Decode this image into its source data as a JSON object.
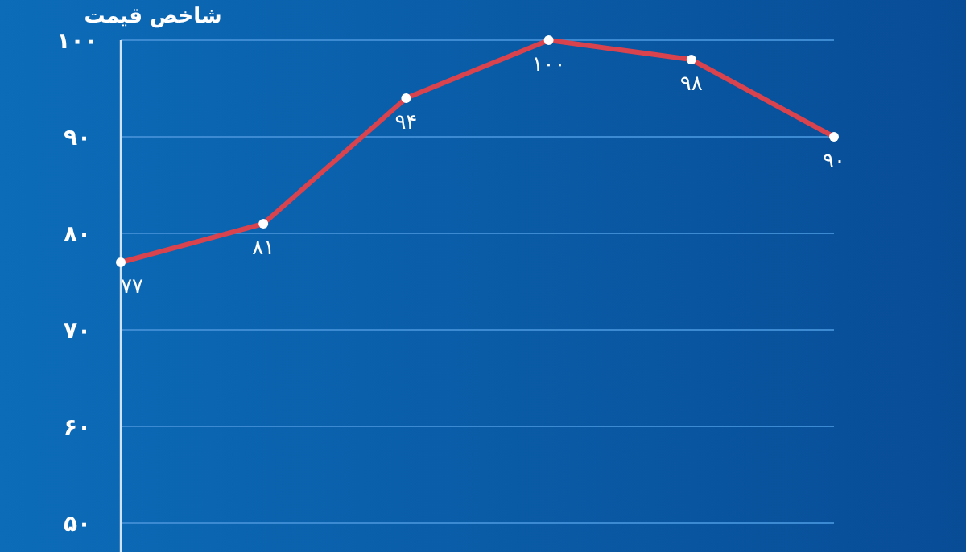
{
  "chart_data": {
    "type": "line",
    "title": "شاخص قیمت",
    "categories": [
      null,
      null,
      null,
      null,
      null,
      null
    ],
    "series": [
      {
        "color": "#d9434e",
        "values": [
          77,
          81,
          94,
          100,
          98,
          90
        ],
        "value_labels": [
          "۷۷",
          "۸۱",
          "۹۴",
          "۱۰۰",
          "۹۸",
          "۹۰"
        ]
      }
    ],
    "ylim": [
      47,
      100
    ],
    "yticks": [
      {
        "value": 50,
        "label": "۵۰"
      },
      {
        "value": 60,
        "label": "۶۰"
      },
      {
        "value": 70,
        "label": "۷۰"
      },
      {
        "value": 80,
        "label": "۸۰"
      },
      {
        "value": 90,
        "label": "۹۰"
      },
      {
        "value": 100,
        "label": "۱۰۰"
      }
    ],
    "grid": "y",
    "marker": "circle",
    "line_style": "solid",
    "tick_labels": "y"
  }
}
